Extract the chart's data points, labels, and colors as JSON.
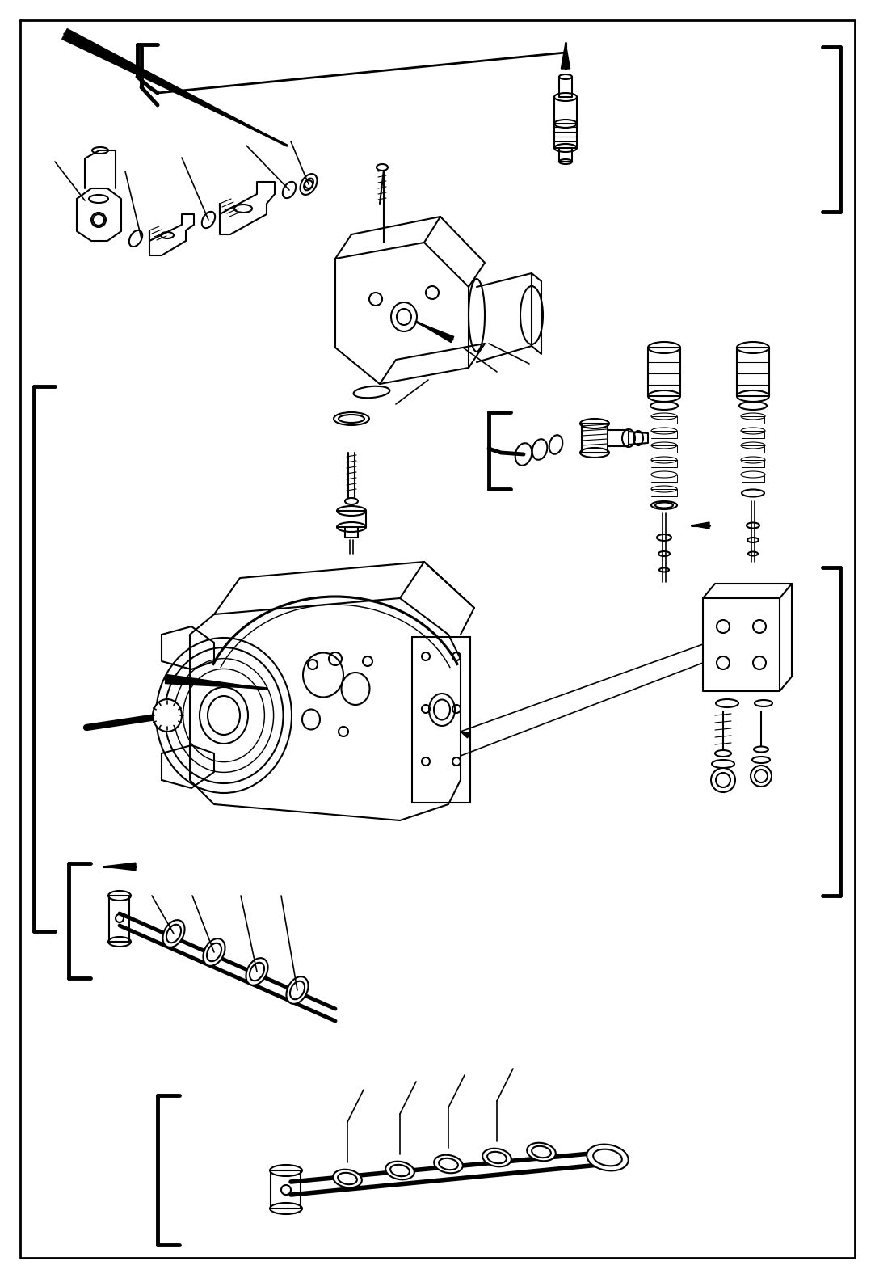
{
  "bg_color": "#ffffff",
  "line_color": "#000000",
  "lw": 1.5,
  "tlw": 3.5,
  "fig_width": 10.83,
  "fig_height": 15.81
}
